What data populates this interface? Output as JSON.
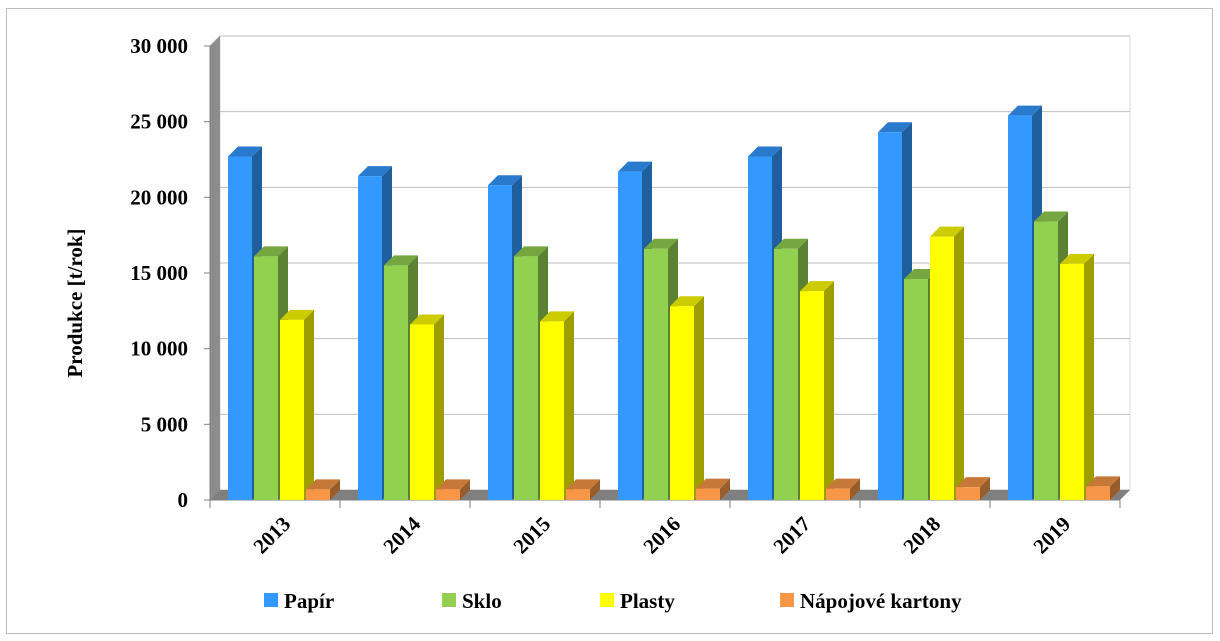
{
  "chart_data": {
    "type": "bar",
    "ylabel": "Produkce [t/rok]",
    "ylim": [
      0,
      30000
    ],
    "yticks": [
      0,
      5000,
      10000,
      15000,
      20000,
      25000,
      30000
    ],
    "ytick_labels": [
      "0",
      "5 000",
      "10 000",
      "15 000",
      "20 000",
      "25 000",
      "30 000"
    ],
    "categories": [
      "2013",
      "2014",
      "2015",
      "2016",
      "2017",
      "2018",
      "2019"
    ],
    "grid": true,
    "legend_position": "bottom",
    "series": [
      {
        "name": "Papír",
        "color": "#3399ff",
        "values": [
          22700,
          21400,
          20800,
          21700,
          22700,
          24300,
          25400
        ]
      },
      {
        "name": "Sklo",
        "color": "#92d050",
        "values": [
          16100,
          15500,
          16100,
          16600,
          16600,
          14600,
          18400
        ]
      },
      {
        "name": "Plasty",
        "color": "#ffff00",
        "values": [
          11900,
          11600,
          11800,
          12800,
          13800,
          17400,
          15600
        ]
      },
      {
        "name": "Nápojové kartony",
        "color": "#f79646",
        "values": [
          700,
          700,
          700,
          750,
          750,
          850,
          900
        ]
      }
    ]
  }
}
